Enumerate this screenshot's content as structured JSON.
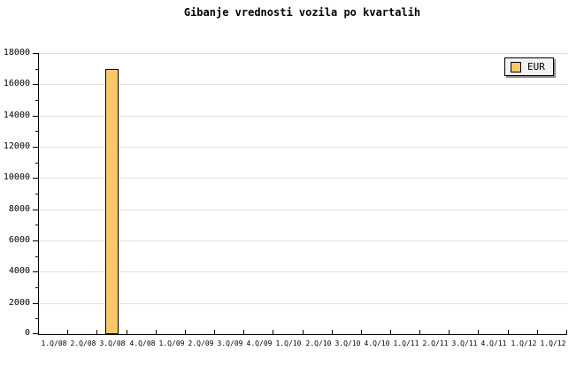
{
  "chart_data": {
    "type": "bar",
    "title": "Gibanje vrednosti vozila po kvartalih",
    "xlabel": "",
    "ylabel": "",
    "categories": [
      "1.Q/08",
      "2.Q/08",
      "3.Q/08",
      "4.Q/08",
      "1.Q/09",
      "2.Q/09",
      "3.Q/09",
      "4.Q/09",
      "1.Q/10",
      "2.Q/10",
      "3.Q/10",
      "4.Q/10",
      "1.Q/11",
      "2.Q/11",
      "3.Q/11",
      "4.Q/11",
      "1.Q/12",
      "1.Q/12"
    ],
    "series": [
      {
        "name": "EUR",
        "values": [
          null,
          null,
          17000,
          null,
          null,
          null,
          null,
          null,
          null,
          null,
          null,
          null,
          null,
          null,
          null,
          null,
          null,
          null
        ]
      }
    ],
    "ylim": [
      0,
      18000
    ],
    "y_major_step": 2000,
    "y_minor_step": 1000,
    "y_tick_labels": [
      "0",
      "2000",
      "4000",
      "6000",
      "8000",
      "10000",
      "12000",
      "14000",
      "16000",
      "18000"
    ],
    "grid": "horizontal-major",
    "legend_position": "top-right",
    "colors": {
      "background": "#FFFFFF",
      "text": "#000000",
      "axis": "#000000",
      "gridline": "#E0E0E0",
      "bar_fill": "#FBC868",
      "bar_border": "#000000",
      "legend_bg": "#F2F2F2",
      "legend_border": "#000000",
      "legend_shadow": "#8C8C8C"
    }
  }
}
